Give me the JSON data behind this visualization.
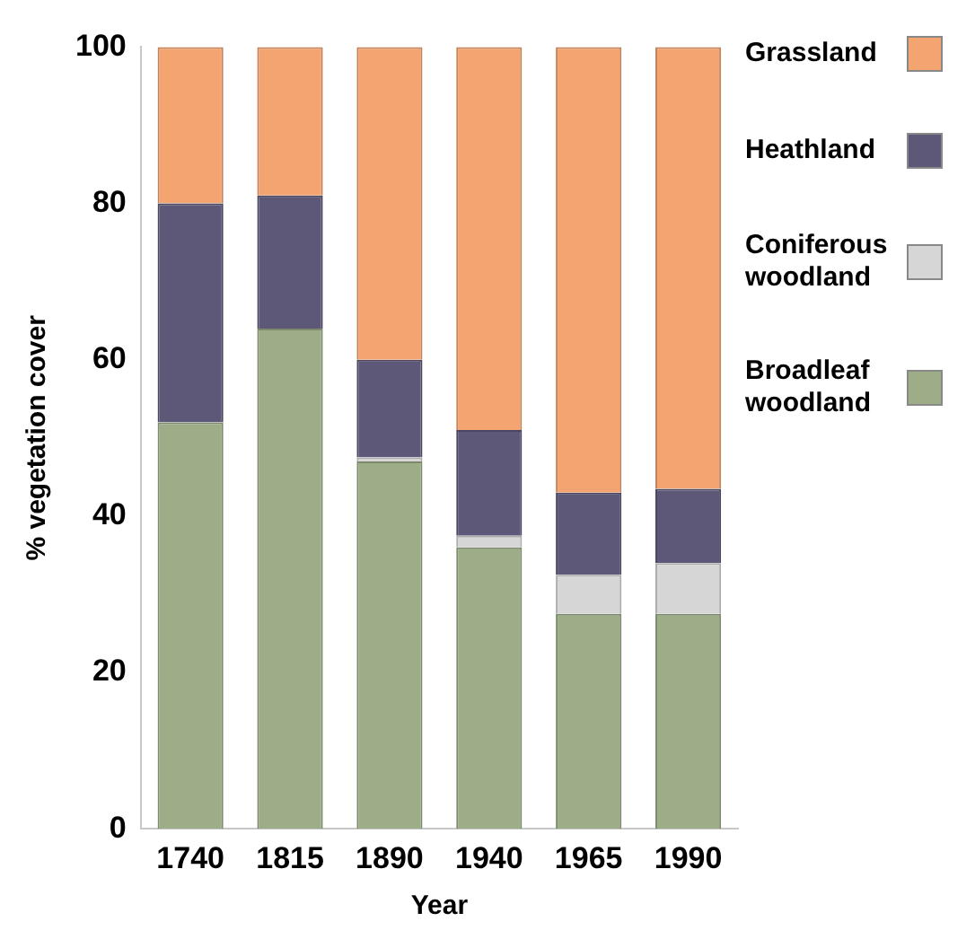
{
  "chart_data": {
    "type": "bar",
    "stacked": true,
    "xlabel": "Year",
    "ylabel": "% vegetation cover",
    "categories": [
      "1740",
      "1815",
      "1890",
      "1940",
      "1965",
      "1990"
    ],
    "ylim": [
      0,
      100
    ],
    "yticks": [
      0,
      20,
      40,
      60,
      80,
      100
    ],
    "grid": false,
    "legend": "right",
    "series": [
      {
        "name": "Broadleaf woodland",
        "color": "#9cad88",
        "values": [
          52,
          64,
          47,
          36,
          27.5,
          27.5
        ]
      },
      {
        "name": "Coniferous woodland",
        "color": "#d6d6d6",
        "values": [
          0,
          0,
          0.5,
          1.5,
          5,
          6.5
        ]
      },
      {
        "name": "Heathland",
        "color": "#5e5878",
        "values": [
          28,
          17,
          12.5,
          13.5,
          10.5,
          9.5
        ]
      },
      {
        "name": "Grassland",
        "color": "#f3a470",
        "values": [
          20,
          19,
          40,
          49,
          57,
          56.5
        ]
      }
    ]
  }
}
